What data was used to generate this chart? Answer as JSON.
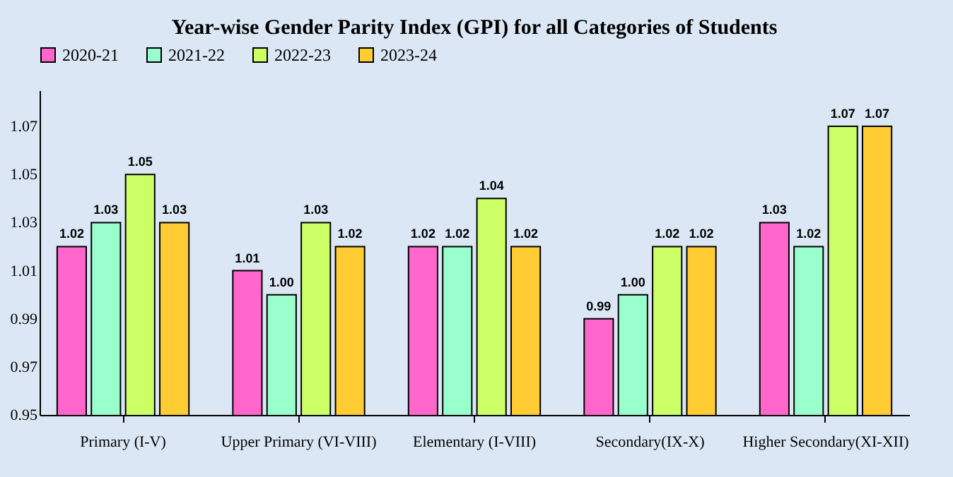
{
  "chart_data": {
    "type": "bar",
    "title": "Year-wise Gender Parity Index (GPI) for all  Categories of Students",
    "categories": [
      "Primary (I-V)",
      "Upper Primary (VI-VIII)",
      "Elementary (I-VIII)",
      "Secondary(IX-X)",
      "Higher Secondary(XI-XII)"
    ],
    "series": [
      {
        "name": "2020-21",
        "color": "#ff66cc",
        "values": [
          1.02,
          1.01,
          1.02,
          0.99,
          1.03
        ]
      },
      {
        "name": "2021-22",
        "color": "#99ffcc",
        "values": [
          1.03,
          1.0,
          1.02,
          1.0,
          1.02
        ],
        "value_labels": [
          "1.03",
          "1.00",
          "1.02",
          "1.00",
          "1.02"
        ]
      },
      {
        "name": "2022-23",
        "color": "#ccff66",
        "values": [
          1.05,
          1.03,
          1.04,
          1.02,
          1.07
        ]
      },
      {
        "name": "2023-24",
        "color": "#ffcc33",
        "values": [
          1.03,
          1.02,
          1.02,
          1.02,
          1.07
        ]
      }
    ],
    "ylim": [
      0.95,
      1.085
    ],
    "yticks": [
      0.95,
      0.97,
      0.99,
      1.01,
      1.03,
      1.05,
      1.07
    ],
    "grid": false,
    "legend": "top",
    "data_labels": true
  }
}
